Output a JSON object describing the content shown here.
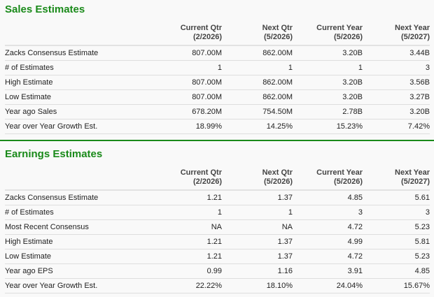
{
  "sales": {
    "title": "Sales Estimates",
    "columns": [
      {
        "label": "Current Qtr",
        "period": "(2/2026)"
      },
      {
        "label": "Next Qtr",
        "period": "(5/2026)"
      },
      {
        "label": "Current Year",
        "period": "(5/2026)"
      },
      {
        "label": "Next Year",
        "period": "(5/2027)"
      }
    ],
    "rows": [
      {
        "label": "Zacks Consensus Estimate",
        "values": [
          "807.00M",
          "862.00M",
          "3.20B",
          "3.44B"
        ]
      },
      {
        "label": "# of Estimates",
        "values": [
          "1",
          "1",
          "1",
          "3"
        ]
      },
      {
        "label": "High Estimate",
        "values": [
          "807.00M",
          "862.00M",
          "3.20B",
          "3.56B"
        ]
      },
      {
        "label": "Low Estimate",
        "values": [
          "807.00M",
          "862.00M",
          "3.20B",
          "3.27B"
        ]
      },
      {
        "label": "Year ago Sales",
        "values": [
          "678.20M",
          "754.50M",
          "2.78B",
          "3.20B"
        ]
      },
      {
        "label": "Year over Year Growth Est.",
        "values": [
          "18.99%",
          "14.25%",
          "15.23%",
          "7.42%"
        ]
      }
    ]
  },
  "earnings": {
    "title": "Earnings Estimates",
    "columns": [
      {
        "label": "Current Qtr",
        "period": "(2/2026)"
      },
      {
        "label": "Next Qtr",
        "period": "(5/2026)"
      },
      {
        "label": "Current Year",
        "period": "(5/2026)"
      },
      {
        "label": "Next Year",
        "period": "(5/2027)"
      }
    ],
    "rows": [
      {
        "label": "Zacks Consensus Estimate",
        "values": [
          "1.21",
          "1.37",
          "4.85",
          "5.61"
        ]
      },
      {
        "label": "# of Estimates",
        "values": [
          "1",
          "1",
          "3",
          "3"
        ]
      },
      {
        "label": "Most Recent Consensus",
        "values": [
          "NA",
          "NA",
          "4.72",
          "5.23"
        ]
      },
      {
        "label": "High Estimate",
        "values": [
          "1.21",
          "1.37",
          "4.99",
          "5.81"
        ]
      },
      {
        "label": "Low Estimate",
        "values": [
          "1.21",
          "1.37",
          "4.72",
          "5.23"
        ]
      },
      {
        "label": "Year ago EPS",
        "values": [
          "0.99",
          "1.16",
          "3.91",
          "4.85"
        ]
      },
      {
        "label": "Year over Year Growth Est.",
        "values": [
          "22.22%",
          "18.10%",
          "24.04%",
          "15.67%"
        ]
      }
    ]
  },
  "colors": {
    "accent": "#1a8a1a",
    "background": "#f9f9f9"
  }
}
